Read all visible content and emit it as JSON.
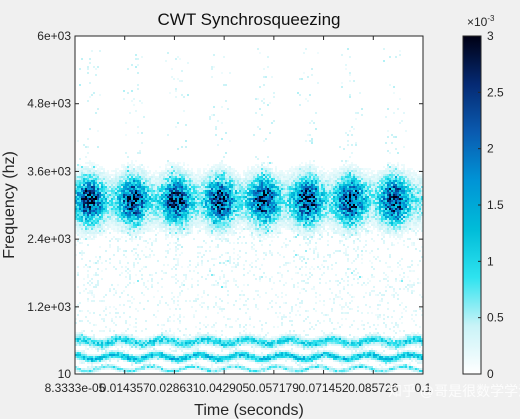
{
  "chart_data": {
    "type": "heatmap",
    "title": "CWT Synchrosqueezing",
    "xlabel": "Time (seconds)",
    "ylabel": "Frequency (hz)",
    "x_ticks": [
      "8.3333e-05",
      "0.014357",
      "0.028631",
      "0.042905",
      "0.057179",
      "0.071452",
      "0.085726",
      "0.1"
    ],
    "y_ticks": [
      "10",
      "1.2e+03",
      "2.4e+03",
      "3.6e+03",
      "4.8e+03",
      "6e+03"
    ],
    "xlim": [
      8.3333e-05,
      0.1
    ],
    "ylim": [
      10,
      6000
    ],
    "colorbar": {
      "exponent_label": "×10",
      "exponent_power": "-3",
      "ticks": [
        "0",
        "0.5",
        "1",
        "1.5",
        "2",
        "2.5",
        "3"
      ],
      "range": [
        0,
        0.003
      ],
      "colors": [
        "#ffffff",
        "#c9f3f7",
        "#2ee3ef",
        "#00bcd8",
        "#0094d6",
        "#0a5bb0",
        "#052a73",
        "#000014"
      ]
    },
    "bands": [
      {
        "freq_center": 3100,
        "freq_halfwidth": 450,
        "peak_times": [
          0.004,
          0.0165,
          0.029,
          0.0415,
          0.054,
          0.0665,
          0.079,
          0.0915
        ],
        "peak_value": 0.003
      },
      {
        "freq_center": 600,
        "freq_halfwidth": 80,
        "peak_value": 0.0012
      },
      {
        "freq_center": 330,
        "freq_halfwidth": 60,
        "peak_value": 0.0015
      },
      {
        "freq_center": 120,
        "freq_halfwidth": 40,
        "peak_value": 0.0009
      }
    ]
  },
  "watermark": "知乎 @哥是很数学学派"
}
